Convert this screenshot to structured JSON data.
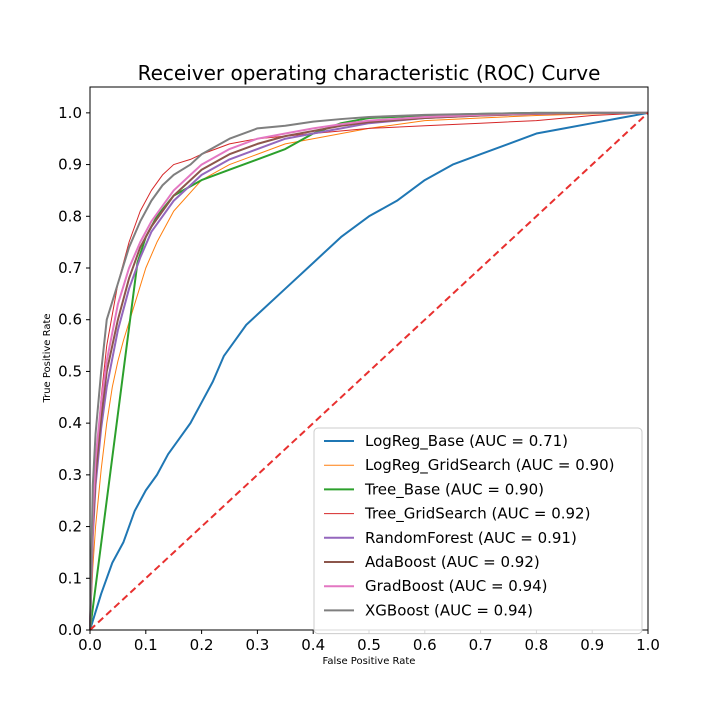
{
  "chart_data": {
    "type": "line",
    "title": "Receiver operating characteristic (ROC) Curve",
    "xlabel": "False Positive Rate",
    "ylabel": "True Positive Rate",
    "xlim": [
      0.0,
      1.0
    ],
    "ylim": [
      0.0,
      1.05
    ],
    "xticks": [
      "0.0",
      "0.1",
      "0.2",
      "0.3",
      "0.4",
      "0.5",
      "0.6",
      "0.7",
      "0.8",
      "0.9",
      "1.0"
    ],
    "yticks": [
      "0.0",
      "0.1",
      "0.2",
      "0.3",
      "0.4",
      "0.5",
      "0.6",
      "0.7",
      "0.8",
      "0.9",
      "1.0"
    ],
    "grid": false,
    "legend_position": "lower-right",
    "series": [
      {
        "name": "LogReg_Base (AUC = 0.71)",
        "color": "#1f77b4",
        "line_width": 2,
        "x": [
          0,
          0.02,
          0.04,
          0.06,
          0.08,
          0.1,
          0.12,
          0.14,
          0.16,
          0.18,
          0.2,
          0.22,
          0.24,
          0.26,
          0.28,
          0.3,
          0.35,
          0.4,
          0.45,
          0.5,
          0.55,
          0.6,
          0.65,
          0.7,
          0.75,
          0.8,
          0.85,
          0.9,
          0.95,
          1.0
        ],
        "y": [
          0,
          0.07,
          0.13,
          0.17,
          0.23,
          0.27,
          0.3,
          0.34,
          0.37,
          0.4,
          0.44,
          0.48,
          0.53,
          0.56,
          0.59,
          0.61,
          0.66,
          0.71,
          0.76,
          0.8,
          0.83,
          0.87,
          0.9,
          0.92,
          0.94,
          0.96,
          0.97,
          0.98,
          0.99,
          1.0
        ]
      },
      {
        "name": "LogReg_GridSearch (AUC = 0.90)",
        "color": "#ff7f0e",
        "line_width": 1,
        "x": [
          0,
          0.005,
          0.01,
          0.02,
          0.03,
          0.04,
          0.05,
          0.06,
          0.08,
          0.1,
          0.12,
          0.15,
          0.2,
          0.25,
          0.3,
          0.35,
          0.4,
          0.5,
          0.6,
          0.7,
          0.8,
          0.9,
          1.0
        ],
        "y": [
          0,
          0.12,
          0.2,
          0.31,
          0.4,
          0.47,
          0.52,
          0.56,
          0.63,
          0.7,
          0.75,
          0.81,
          0.87,
          0.9,
          0.92,
          0.94,
          0.95,
          0.97,
          0.985,
          0.99,
          0.995,
          0.998,
          1.0
        ]
      },
      {
        "name": "Tree_Base (AUC = 0.90)",
        "color": "#2ca02c",
        "line_width": 2,
        "x": [
          0,
          0.085,
          0.1,
          0.12,
          0.15,
          0.2,
          0.25,
          0.3,
          0.35,
          0.4,
          0.45,
          0.5,
          0.6,
          0.7,
          0.8,
          0.9,
          1.0
        ],
        "y": [
          0,
          0.71,
          0.76,
          0.8,
          0.84,
          0.87,
          0.89,
          0.91,
          0.93,
          0.96,
          0.98,
          0.99,
          0.995,
          0.998,
          1.0,
          1.0,
          1.0
        ]
      },
      {
        "name": "Tree_GridSearch (AUC = 0.92)",
        "color": "#d62728",
        "line_width": 1,
        "x": [
          0,
          0.005,
          0.01,
          0.02,
          0.03,
          0.05,
          0.07,
          0.09,
          0.11,
          0.13,
          0.15,
          0.18,
          0.2,
          0.25,
          0.3,
          0.4,
          0.5,
          0.6,
          0.7,
          0.8,
          0.9,
          1.0
        ],
        "y": [
          0,
          0.2,
          0.32,
          0.45,
          0.55,
          0.67,
          0.75,
          0.81,
          0.85,
          0.88,
          0.9,
          0.91,
          0.92,
          0.94,
          0.95,
          0.96,
          0.97,
          0.975,
          0.98,
          0.985,
          0.995,
          1.0
        ]
      },
      {
        "name": "RandomForest (AUC = 0.91)",
        "color": "#9467bd",
        "line_width": 2,
        "x": [
          0,
          0.005,
          0.01,
          0.02,
          0.03,
          0.05,
          0.07,
          0.09,
          0.11,
          0.13,
          0.15,
          0.18,
          0.2,
          0.25,
          0.3,
          0.35,
          0.4,
          0.45,
          0.5,
          0.6,
          0.7,
          0.8,
          0.9,
          1.0
        ],
        "y": [
          0,
          0.18,
          0.28,
          0.39,
          0.47,
          0.58,
          0.66,
          0.72,
          0.77,
          0.8,
          0.83,
          0.86,
          0.88,
          0.91,
          0.93,
          0.95,
          0.96,
          0.97,
          0.98,
          0.99,
          0.995,
          0.998,
          1.0,
          1.0
        ]
      },
      {
        "name": "AdaBoost (AUC = 0.92)",
        "color": "#8c564b",
        "line_width": 2,
        "x": [
          0,
          0.005,
          0.01,
          0.02,
          0.03,
          0.05,
          0.07,
          0.09,
          0.11,
          0.13,
          0.15,
          0.18,
          0.2,
          0.25,
          0.3,
          0.35,
          0.4,
          0.45,
          0.5,
          0.6,
          0.7,
          0.8,
          0.9,
          1.0
        ],
        "y": [
          0,
          0.2,
          0.3,
          0.41,
          0.5,
          0.6,
          0.68,
          0.74,
          0.78,
          0.81,
          0.84,
          0.87,
          0.89,
          0.92,
          0.94,
          0.955,
          0.965,
          0.975,
          0.982,
          0.99,
          0.995,
          0.998,
          1.0,
          1.0
        ]
      },
      {
        "name": "GradBoost (AUC = 0.94)",
        "color": "#e377c2",
        "line_width": 2,
        "x": [
          0,
          0.005,
          0.01,
          0.02,
          0.03,
          0.05,
          0.07,
          0.09,
          0.11,
          0.13,
          0.15,
          0.18,
          0.2,
          0.25,
          0.3,
          0.35,
          0.4,
          0.45,
          0.5,
          0.6,
          0.7,
          0.8,
          0.9,
          1.0
        ],
        "y": [
          0,
          0.22,
          0.33,
          0.44,
          0.52,
          0.63,
          0.7,
          0.75,
          0.79,
          0.82,
          0.85,
          0.88,
          0.9,
          0.93,
          0.95,
          0.96,
          0.97,
          0.978,
          0.985,
          0.992,
          0.996,
          0.999,
          1.0,
          1.0
        ]
      },
      {
        "name": "XGBoost (AUC = 0.94)",
        "color": "#7f7f7f",
        "line_width": 2,
        "x": [
          0,
          0.005,
          0.01,
          0.02,
          0.03,
          0.05,
          0.07,
          0.09,
          0.11,
          0.13,
          0.15,
          0.18,
          0.2,
          0.25,
          0.3,
          0.35,
          0.4,
          0.45,
          0.5,
          0.6,
          0.7,
          0.8,
          0.9,
          1.0
        ],
        "y": [
          0,
          0.28,
          0.38,
          0.5,
          0.6,
          0.67,
          0.74,
          0.79,
          0.83,
          0.86,
          0.88,
          0.9,
          0.92,
          0.95,
          0.97,
          0.975,
          0.983,
          0.988,
          0.992,
          0.996,
          0.998,
          1.0,
          1.0,
          1.0
        ]
      }
    ],
    "reference_line": {
      "x": [
        0,
        1
      ],
      "y": [
        0,
        1
      ],
      "color": "#e8302f",
      "style": "dashed"
    }
  }
}
